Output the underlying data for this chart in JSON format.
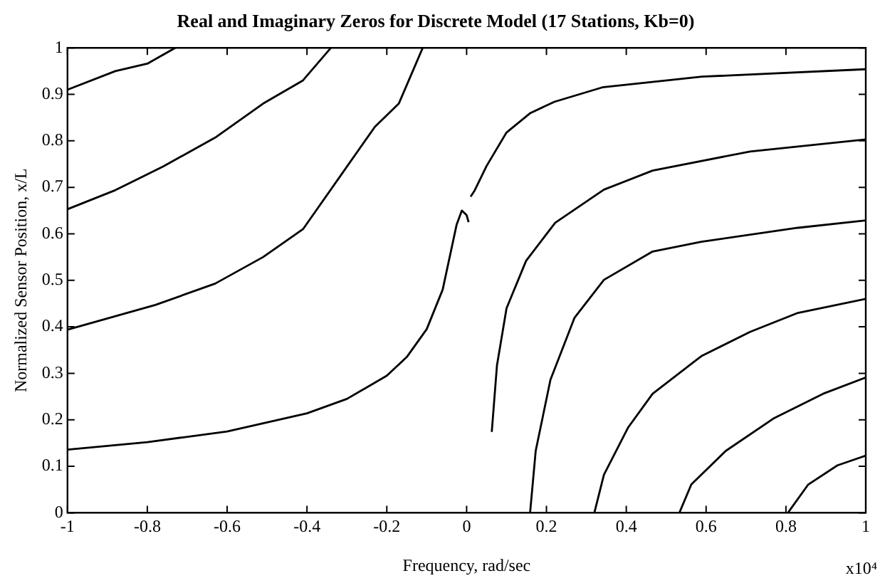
{
  "chart_data": {
    "type": "line",
    "title": "Real and Imaginary Zeros for Discrete Model (17 Stations, Kb=0)",
    "xlabel": "Frequency, rad/sec",
    "ylabel": "Normalized Sensor Position, x/L",
    "annotations": [
      "x10⁴"
    ],
    "xlim": [
      -1,
      1
    ],
    "ylim": [
      0,
      1
    ],
    "xticks": [
      -1,
      -0.8,
      -0.6,
      -0.4,
      -0.2,
      0,
      0.2,
      0.4,
      0.6,
      0.8,
      1
    ],
    "yticks": [
      0,
      0.1,
      0.2,
      0.3,
      0.4,
      0.5,
      0.6,
      0.7,
      0.8,
      0.9,
      1
    ],
    "grid": false,
    "legend": false,
    "marker": "none",
    "line_style": "solid",
    "series": [
      {
        "color": "#000000",
        "x": [
          -1,
          -0.8,
          -0.6,
          -0.4,
          -0.3,
          -0.2,
          -0.15,
          -0.1,
          -0.06,
          -0.04,
          -0.025,
          -0.012,
          0,
          0.005
        ],
        "values": [
          0.136,
          0.152,
          0.175,
          0.214,
          0.245,
          0.295,
          0.335,
          0.395,
          0.48,
          0.56,
          0.62,
          0.65,
          0.64,
          0.625
        ]
      },
      {
        "color": "#000000",
        "x": [
          -1,
          -0.78,
          -0.63,
          -0.51,
          -0.41,
          -0.32,
          -0.23,
          -0.17,
          -0.13,
          -0.11
        ],
        "values": [
          0.394,
          0.447,
          0.493,
          0.55,
          0.61,
          0.72,
          0.83,
          0.88,
          0.96,
          1.0
        ]
      },
      {
        "color": "#000000",
        "x": [
          -1,
          -0.88,
          -0.76,
          -0.63,
          -0.51,
          -0.41,
          -0.34
        ],
        "values": [
          0.653,
          0.694,
          0.745,
          0.807,
          0.88,
          0.93,
          1.0
        ]
      },
      {
        "color": "#000000",
        "x": [
          -1,
          -0.88,
          -0.8,
          -0.73
        ],
        "values": [
          0.91,
          0.95,
          0.966,
          1.0
        ]
      },
      {
        "color": "#000000",
        "x": [
          0.01,
          0.02,
          0.05,
          0.1,
          0.16,
          0.22,
          0.34,
          0.59,
          1.0
        ],
        "values": [
          0.68,
          0.693,
          0.746,
          0.818,
          0.86,
          0.884,
          0.915,
          0.938,
          0.954
        ]
      },
      {
        "color": "#000000",
        "x": [
          0.063,
          0.076,
          0.1,
          0.149,
          0.222,
          0.344,
          0.466,
          0.71,
          1.0
        ],
        "values": [
          0.174,
          0.317,
          0.44,
          0.542,
          0.624,
          0.695,
          0.736,
          0.777,
          0.803
        ]
      },
      {
        "color": "#000000",
        "x": [
          0.159,
          0.173,
          0.21,
          0.27,
          0.344,
          0.466,
          0.588,
          0.83,
          1.0
        ],
        "values": [
          0,
          0.133,
          0.286,
          0.419,
          0.501,
          0.562,
          0.583,
          0.613,
          0.629
        ]
      },
      {
        "color": "#000000",
        "x": [
          0.32,
          0.344,
          0.405,
          0.466,
          0.588,
          0.71,
          0.83,
          1.0
        ],
        "values": [
          0,
          0.082,
          0.184,
          0.256,
          0.337,
          0.389,
          0.43,
          0.46
        ]
      },
      {
        "color": "#000000",
        "x": [
          0.533,
          0.563,
          0.649,
          0.771,
          0.893,
          1.0
        ],
        "values": [
          0,
          0.061,
          0.133,
          0.204,
          0.256,
          0.291
        ]
      },
      {
        "color": "#000000",
        "x": [
          0.805,
          0.856,
          0.929,
          1.0
        ],
        "values": [
          0,
          0.061,
          0.102,
          0.123
        ]
      }
    ]
  }
}
